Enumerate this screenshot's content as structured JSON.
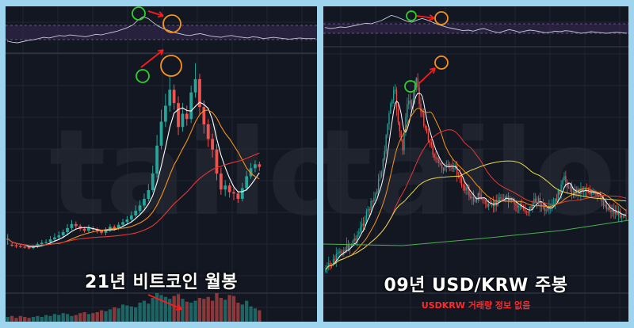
{
  "watermark": "tailong",
  "colors": {
    "background": "#131722",
    "border": "#9fd4ef",
    "up": "#26a69a",
    "down": "#ef5350",
    "rsi_band": "#3b2a55",
    "rsi_line": "#c9c9d9",
    "ma_white": "#ffffff",
    "ma_orange": "#f7931a",
    "ma_red": "#e53935",
    "ma_yellow": "#e6d84a",
    "ma_green": "#4caf50",
    "circle_green": "#2bd12b",
    "circle_orange": "#f7931a",
    "arrow": "#ff1a1a"
  },
  "panels": [
    {
      "caption": "21년 비트코인 월봉",
      "note": "",
      "has_volume": true
    },
    {
      "caption": "09년 USD/KRW 주봉",
      "note": "USDKRW 거래량 정보 없음",
      "has_volume": false
    }
  ],
  "chart_data": [
    {
      "type": "candlestick",
      "title": "21년 비트코인 월봉",
      "candles": [
        [
          58,
          58,
          49,
          65
        ],
        [
          49,
          48,
          46,
          52
        ],
        [
          48,
          47,
          44,
          50
        ],
        [
          47,
          46,
          44,
          49
        ],
        [
          46,
          45,
          43,
          48
        ],
        [
          45,
          44,
          42,
          47
        ],
        [
          44,
          46,
          42,
          49
        ],
        [
          46,
          50,
          44,
          53
        ],
        [
          50,
          52,
          47,
          56
        ],
        [
          52,
          53,
          48,
          57
        ],
        [
          53,
          57,
          50,
          62
        ],
        [
          57,
          60,
          53,
          66
        ],
        [
          60,
          63,
          56,
          69
        ],
        [
          63,
          68,
          59,
          72
        ],
        [
          68,
          74,
          63,
          80
        ],
        [
          74,
          80,
          71,
          86
        ],
        [
          80,
          77,
          72,
          84
        ],
        [
          77,
          73,
          70,
          80
        ],
        [
          73,
          70,
          67,
          76
        ],
        [
          70,
          74,
          66,
          79
        ],
        [
          74,
          72,
          68,
          77
        ],
        [
          72,
          70,
          66,
          75
        ],
        [
          70,
          67,
          64,
          72
        ],
        [
          67,
          71,
          63,
          75
        ],
        [
          71,
          76,
          68,
          80
        ],
        [
          76,
          74,
          70,
          79
        ],
        [
          74,
          79,
          71,
          83
        ],
        [
          79,
          83,
          76,
          88
        ],
        [
          83,
          87,
          80,
          92
        ],
        [
          87,
          93,
          84,
          99
        ],
        [
          93,
          100,
          90,
          108
        ],
        [
          100,
          108,
          96,
          116
        ],
        [
          108,
          118,
          104,
          126
        ],
        [
          118,
          131,
          114,
          140
        ],
        [
          131,
          156,
          128,
          168
        ],
        [
          156,
          198,
          150,
          214
        ],
        [
          198,
          234,
          192,
          252
        ],
        [
          234,
          258,
          226,
          276
        ],
        [
          258,
          282,
          249,
          304
        ],
        [
          282,
          262,
          252,
          290
        ],
        [
          262,
          226,
          214,
          272
        ],
        [
          226,
          246,
          219,
          262
        ],
        [
          246,
          238,
          228,
          258
        ],
        [
          238,
          278,
          232,
          288
        ],
        [
          278,
          298,
          270,
          322
        ],
        [
          298,
          256,
          244,
          306
        ],
        [
          256,
          230,
          216,
          266
        ],
        [
          230,
          208,
          196,
          238
        ],
        [
          208,
          192,
          180,
          216
        ],
        [
          192,
          156,
          146,
          200
        ],
        [
          156,
          132,
          124,
          165
        ],
        [
          132,
          138,
          122,
          146
        ],
        [
          138,
          128,
          120,
          142
        ],
        [
          128,
          126,
          116,
          134
        ],
        [
          126,
          118,
          112,
          130
        ],
        [
          118,
          134,
          114,
          142
        ],
        [
          134,
          152,
          130,
          160
        ],
        [
          152,
          164,
          148,
          172
        ],
        [
          164,
          170,
          158,
          176
        ],
        [
          170,
          166,
          160,
          174
        ]
      ],
      "volume": [
        5,
        6,
        4,
        6,
        5,
        4,
        5,
        6,
        5,
        7,
        6,
        8,
        7,
        9,
        8,
        6,
        7,
        9,
        10,
        8,
        9,
        10,
        12,
        11,
        13,
        15,
        14,
        18,
        17,
        16,
        15,
        20,
        22,
        19,
        25,
        30,
        28,
        26,
        24,
        27,
        29,
        24,
        21,
        20,
        22,
        25,
        24,
        26,
        22,
        30,
        25,
        23,
        28,
        27,
        20,
        18,
        22,
        16,
        14,
        12
      ],
      "rsi": [
        46,
        44,
        43,
        45,
        47,
        48,
        50,
        52,
        51,
        53,
        55,
        54,
        56,
        55,
        54,
        53,
        55,
        57,
        56,
        58,
        60,
        62,
        65,
        68,
        72,
        80,
        86,
        83,
        76,
        70,
        66,
        63,
        60,
        58,
        56,
        55,
        57,
        58,
        56,
        54,
        53,
        52,
        54,
        55,
        53,
        52,
        51,
        53,
        52,
        50,
        51,
        52,
        51,
        50,
        49,
        50,
        51,
        50,
        50,
        50
      ]
    },
    {
      "type": "candlestick",
      "title": "09년 USD/KRW 주봉",
      "x": [],
      "rsi": [
        62,
        60,
        61,
        63,
        62,
        64,
        66,
        68,
        70,
        69,
        72,
        75,
        80,
        85,
        82,
        78,
        74,
        72,
        76,
        79,
        76,
        72,
        68,
        65,
        62,
        60,
        58,
        56,
        57,
        55,
        58,
        60,
        57,
        54,
        52,
        55,
        58,
        56,
        53,
        55,
        57,
        56,
        54,
        52,
        53,
        55,
        54,
        56,
        55,
        53,
        51,
        52,
        54,
        53,
        52,
        51,
        52,
        53,
        52,
        51
      ]
    }
  ]
}
